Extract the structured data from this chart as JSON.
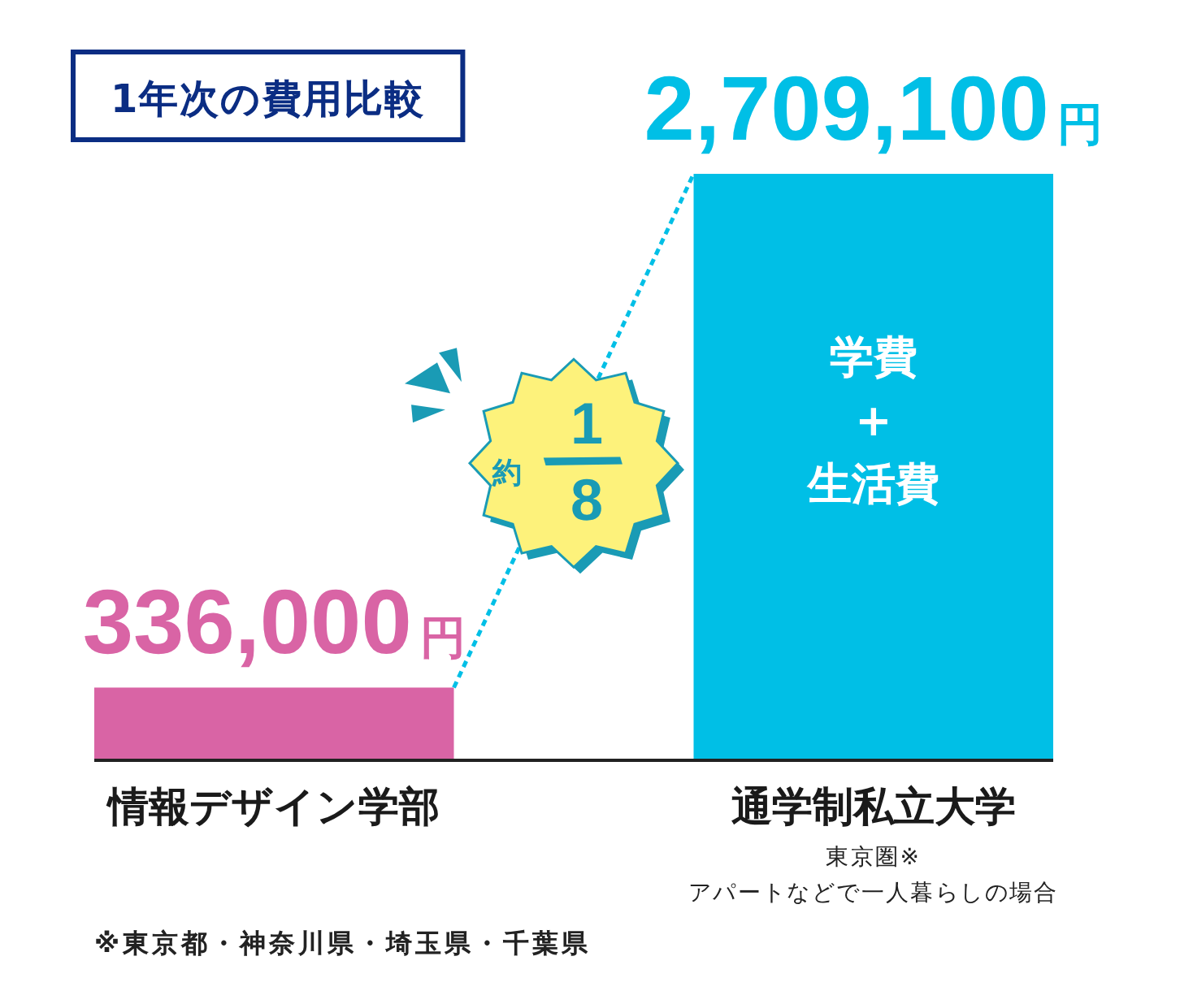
{
  "chart_data": {
    "type": "bar",
    "title": "1年次の費用比較",
    "categories": [
      "情報デザイン学部",
      "通学制私立大学"
    ],
    "values": [
      336000,
      2709100
    ],
    "colors": [
      "#d964a5",
      "#00bfe6"
    ],
    "value_labels": [
      "336,000円",
      "2,709,100円"
    ],
    "tick_labels": "x",
    "annotations": [
      "学費\n+\n生活費",
      "約 1/8",
      "東京圏※\nアパートなどで一人暮らしの場合",
      "※東京都・神奈川県・埼玉県・千葉県"
    ]
  }
}
